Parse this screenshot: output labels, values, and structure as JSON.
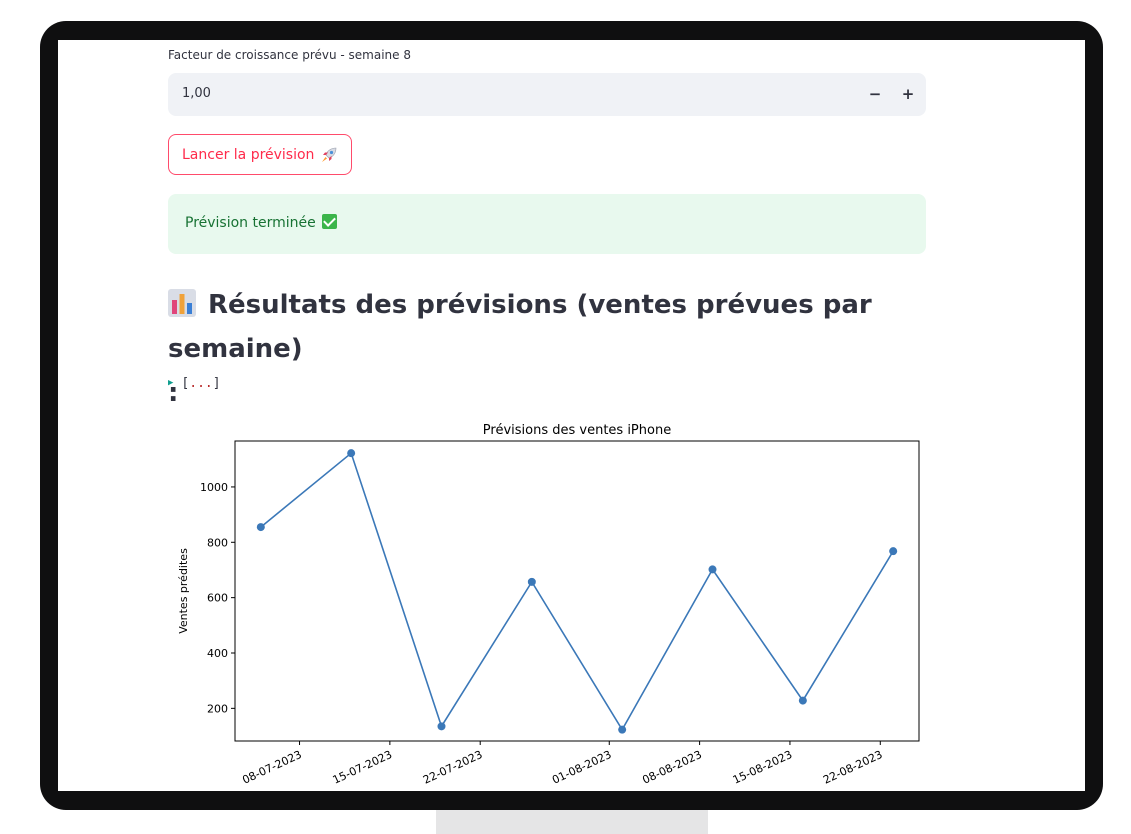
{
  "growth_input": {
    "label": "Facteur de croissance prévu - semaine 8",
    "value": "1,00",
    "minus_label": "−",
    "plus_label": "+"
  },
  "run_button": {
    "label": "Lancer la prévision"
  },
  "success": {
    "message": "Prévision terminée"
  },
  "results": {
    "heading_line1": "Résultats des prévisions (ventes prévues par semaine)",
    "heading_line2": ":"
  },
  "json_view": {
    "open": "[",
    "dots": "...",
    "close": "]"
  },
  "colors": {
    "accent": "#ff4b4b",
    "line": "#3b78b8",
    "success_bg": "#e8f9ee",
    "success_text": "#177233"
  },
  "chart_data": {
    "type": "line",
    "title": "Prévisions des ventes iPhone",
    "ylabel": "Ventes prédites",
    "xlabel": "",
    "x": [
      "2023-07-05",
      "2023-07-12",
      "2023-07-19",
      "2023-07-26",
      "2023-08-02",
      "2023-08-09",
      "2023-08-16",
      "2023-08-23"
    ],
    "values": [
      855,
      1122,
      135,
      657,
      123,
      702,
      228,
      768
    ],
    "x_ticks": [
      "08-07-2023",
      "15-07-2023",
      "22-07-2023",
      "01-08-2023",
      "08-08-2023",
      "15-08-2023",
      "22-08-2023"
    ],
    "y_ticks": [
      200,
      400,
      600,
      800,
      1000
    ],
    "ylim": [
      82,
      1166
    ],
    "marker": "circle",
    "grid": false
  }
}
